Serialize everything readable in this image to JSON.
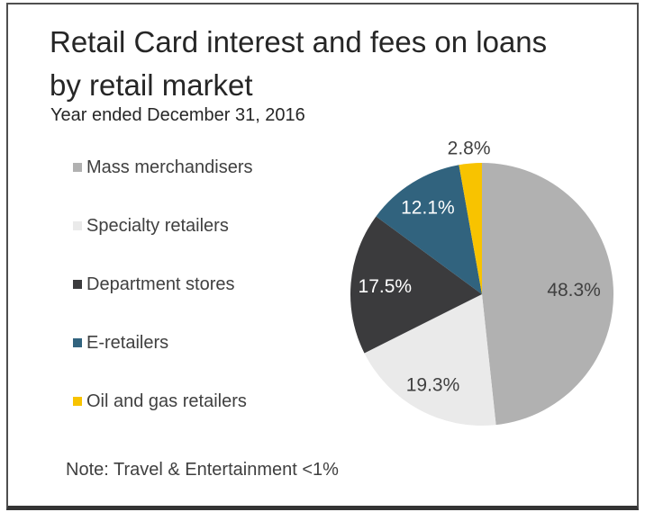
{
  "header": {
    "title_line1": "Retail Card interest and fees on loans",
    "title_line2": "by retail market",
    "subtitle": "Year ended December 31, 2016"
  },
  "chart_data": {
    "type": "pie",
    "title": "Retail Card interest and fees on loans by retail market",
    "subtitle": "Year ended December 31, 2016",
    "unit": "percent",
    "direction": "clockwise",
    "start_angle_deg": -90,
    "legend_position": "left",
    "note": "Note: Travel & Entertainment <1%",
    "slices": [
      {
        "label": "Mass merchandisers",
        "value": 48.3,
        "display": "48.3%",
        "color": "#b1b1b1",
        "label_color": "#404040",
        "label_placement": "inside"
      },
      {
        "label": "Specialty retailers",
        "value": 19.3,
        "display": "19.3%",
        "color": "#eaeaea",
        "label_color": "#404040",
        "label_placement": "inside"
      },
      {
        "label": "Department stores",
        "value": 17.5,
        "display": "17.5%",
        "color": "#3b3b3d",
        "label_color": "#ffffff",
        "label_placement": "inside"
      },
      {
        "label": "E-retailers",
        "value": 12.1,
        "display": "12.1%",
        "color": "#31637e",
        "label_color": "#ffffff",
        "label_placement": "inside"
      },
      {
        "label": "Oil and gas retailers",
        "value": 2.8,
        "display": "2.8%",
        "color": "#f8c300",
        "label_color": "#404040",
        "label_placement": "outside"
      }
    ]
  }
}
